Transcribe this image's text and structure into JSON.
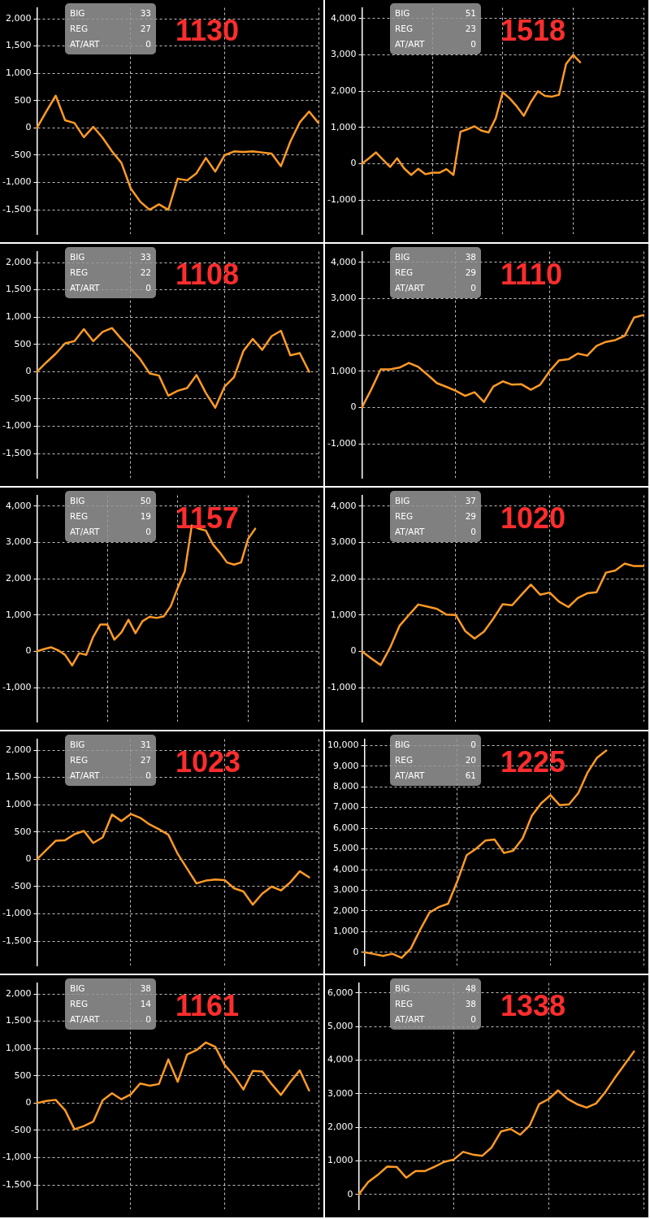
{
  "chart_data": [
    {
      "type": "line",
      "title": "1130",
      "annotations": [
        "BIG",
        "33",
        "REG",
        "27",
        "AT/ART",
        "0"
      ],
      "categories": [
        null,
        null,
        null,
        null,
        null,
        null,
        null,
        null,
        null,
        null,
        null,
        null,
        null,
        null,
        null,
        null,
        null,
        null,
        null,
        null,
        null,
        null,
        null,
        null,
        null,
        null,
        null,
        null,
        null,
        null,
        null
      ],
      "values": [
        0,
        300,
        590,
        140,
        90,
        -170,
        20,
        -180,
        -430,
        -640,
        -1110,
        -1350,
        -1500,
        -1400,
        -1500,
        -930,
        -960,
        -830,
        -550,
        -800,
        -500,
        -430,
        -440,
        -430,
        -450,
        -470,
        -700,
        -250,
        100,
        300,
        90
      ],
      "color": "#ff9a26",
      "ylim": [
        -1950,
        2200
      ],
      "yticks": [
        {
          "value": -1500,
          "label": "-1,500"
        },
        {
          "value": -1000,
          "label": "-1,000"
        },
        -500,
        0,
        500,
        {
          "value": 1000,
          "label": "1,000"
        },
        {
          "value": 1500,
          "label": "1,500"
        },
        {
          "value": 2000,
          "label": "2,000"
        }
      ],
      "grid": true,
      "tick_labels": "y",
      "marker": "none"
    },
    {
      "type": "line",
      "title": "1518",
      "annotations": [
        "BIG",
        "51",
        "REG",
        "23",
        "AT/ART",
        "0"
      ],
      "categories": [
        null,
        null,
        null,
        null,
        null,
        null,
        null,
        null,
        null,
        null,
        null,
        null,
        null,
        null,
        null,
        null,
        null,
        null,
        null,
        null,
        null,
        null,
        null,
        null,
        null,
        null,
        null,
        null,
        null,
        null,
        null,
        null,
        null,
        null,
        null,
        null,
        null,
        null,
        null,
        null,
        null
      ],
      "values": [
        0,
        150,
        310,
        110,
        -90,
        150,
        -130,
        -310,
        -140,
        -290,
        -250,
        -250,
        -150,
        -310,
        880,
        950,
        1030,
        910,
        860,
        1250,
        1970,
        1800,
        1580,
        1320,
        1700,
        2000,
        1870,
        1850,
        1900,
        2750,
        3000,
        2800,
        null,
        null,
        null,
        null,
        null,
        null,
        null,
        null,
        null
      ],
      "color": "#ff9a26",
      "ylim": [
        -1950,
        4300
      ],
      "yticks": [
        {
          "value": -1000,
          "label": "-1,000"
        },
        0,
        {
          "value": 1000,
          "label": "1,000"
        },
        {
          "value": 2000,
          "label": "2,000"
        },
        {
          "value": 3000,
          "label": "3,000"
        },
        {
          "value": 4000,
          "label": "4,000"
        }
      ],
      "grid": true,
      "tick_labels": "y",
      "marker": "none"
    },
    {
      "type": "line",
      "title": "1108",
      "annotations": [
        "BIG",
        "33",
        "REG",
        "22",
        "AT/ART",
        "0"
      ],
      "categories": [
        null,
        null,
        null,
        null,
        null,
        null,
        null,
        null,
        null,
        null,
        null,
        null,
        null,
        null,
        null,
        null,
        null,
        null,
        null,
        null,
        null,
        null,
        null,
        null,
        null,
        null,
        null,
        null,
        null,
        null,
        null
      ],
      "values": [
        0,
        170,
        330,
        520,
        560,
        780,
        560,
        730,
        800,
        600,
        420,
        230,
        -30,
        -70,
        -440,
        -350,
        -300,
        -60,
        -390,
        -660,
        -270,
        -100,
        380,
        600,
        400,
        650,
        750,
        300,
        340,
        0,
        null
      ],
      "color": "#ff9a26",
      "ylim": [
        -1950,
        2200
      ],
      "yticks": [
        {
          "value": -1500,
          "label": "-1,500"
        },
        {
          "value": -1000,
          "label": "-1,000"
        },
        -500,
        0,
        500,
        {
          "value": 1000,
          "label": "1,000"
        },
        {
          "value": 1500,
          "label": "1,500"
        },
        {
          "value": 2000,
          "label": "2,000"
        }
      ],
      "grid": true,
      "tick_labels": "y",
      "marker": "none"
    },
    {
      "type": "line",
      "title": "1110",
      "annotations": [
        "BIG",
        "38",
        "REG",
        "29",
        "AT/ART",
        "0"
      ],
      "categories": [
        null,
        null,
        null,
        null,
        null,
        null,
        null,
        null,
        null,
        null,
        null,
        null,
        null,
        null,
        null,
        null,
        null,
        null,
        null,
        null,
        null,
        null,
        null,
        null,
        null,
        null,
        null,
        null,
        null,
        null,
        null
      ],
      "values": [
        0,
        500,
        1050,
        1050,
        1100,
        1230,
        1120,
        900,
        670,
        570,
        460,
        320,
        420,
        150,
        580,
        720,
        630,
        640,
        490,
        630,
        1000,
        1300,
        1330,
        1490,
        1430,
        1700,
        1810,
        1860,
        1980,
        2480,
        2550
      ],
      "color": "#ff9a26",
      "ylim": [
        -1950,
        4300
      ],
      "yticks": [
        {
          "value": -1000,
          "label": "-1,000"
        },
        0,
        {
          "value": 1000,
          "label": "1,000"
        },
        {
          "value": 2000,
          "label": "2,000"
        },
        {
          "value": 3000,
          "label": "3,000"
        },
        {
          "value": 4000,
          "label": "4,000"
        }
      ],
      "grid": true,
      "tick_labels": "y",
      "marker": "none"
    },
    {
      "type": "line",
      "title": "1157",
      "annotations": [
        "BIG",
        "50",
        "REG",
        "19",
        "AT/ART",
        "0"
      ],
      "categories": [
        null,
        null,
        null,
        null,
        null,
        null,
        null,
        null,
        null,
        null,
        null,
        null,
        null,
        null,
        null,
        null,
        null,
        null,
        null,
        null,
        null,
        null,
        null,
        null,
        null,
        null,
        null,
        null,
        null,
        null,
        null,
        null,
        null,
        null,
        null,
        null,
        null,
        null,
        null,
        null,
        null
      ],
      "values": [
        0,
        60,
        110,
        30,
        -100,
        -390,
        -50,
        -100,
        400,
        740,
        740,
        320,
        520,
        870,
        500,
        830,
        950,
        920,
        960,
        1240,
        1750,
        2200,
        3470,
        3380,
        3330,
        2950,
        2720,
        2450,
        2390,
        2450,
        3100,
        3380,
        null,
        null,
        null,
        null,
        null,
        null,
        null,
        null,
        null
      ],
      "color": "#ff9a26",
      "ylim": [
        -1950,
        4300
      ],
      "yticks": [
        {
          "value": -1000,
          "label": "-1,000"
        },
        0,
        {
          "value": 1000,
          "label": "1,000"
        },
        {
          "value": 2000,
          "label": "2,000"
        },
        {
          "value": 3000,
          "label": "3,000"
        },
        {
          "value": 4000,
          "label": "4,000"
        }
      ],
      "grid": true,
      "tick_labels": "y",
      "marker": "none"
    },
    {
      "type": "line",
      "title": "1020",
      "annotations": [
        "BIG",
        "37",
        "REG",
        "29",
        "AT/ART",
        "0"
      ],
      "categories": [
        null,
        null,
        null,
        null,
        null,
        null,
        null,
        null,
        null,
        null,
        null,
        null,
        null,
        null,
        null,
        null,
        null,
        null,
        null,
        null,
        null,
        null,
        null,
        null,
        null,
        null,
        null,
        null,
        null,
        null,
        null
      ],
      "values": [
        0,
        -200,
        -380,
        100,
        700,
        1000,
        1290,
        1230,
        1170,
        1010,
        1000,
        560,
        350,
        540,
        900,
        1300,
        1270,
        1560,
        1840,
        1560,
        1620,
        1370,
        1220,
        1470,
        1600,
        1630,
        2170,
        2230,
        2420,
        2350,
        2350
      ],
      "color": "#ff9a26",
      "ylim": [
        -1950,
        4300
      ],
      "yticks": [
        {
          "value": -1000,
          "label": "-1,000"
        },
        0,
        {
          "value": 1000,
          "label": "1,000"
        },
        {
          "value": 2000,
          "label": "2,000"
        },
        {
          "value": 3000,
          "label": "3,000"
        },
        {
          "value": 4000,
          "label": "4,000"
        }
      ],
      "grid": true,
      "tick_labels": "y",
      "marker": "none"
    },
    {
      "type": "line",
      "title": "1023",
      "annotations": [
        "BIG",
        "31",
        "REG",
        "27",
        "AT/ART",
        "0"
      ],
      "categories": [
        null,
        null,
        null,
        null,
        null,
        null,
        null,
        null,
        null,
        null,
        null,
        null,
        null,
        null,
        null,
        null,
        null,
        null,
        null,
        null,
        null,
        null,
        null,
        null,
        null,
        null,
        null,
        null,
        null,
        null,
        null
      ],
      "values": [
        0,
        170,
        340,
        350,
        460,
        520,
        300,
        400,
        820,
        700,
        830,
        760,
        640,
        550,
        450,
        100,
        -170,
        -440,
        -390,
        -370,
        -380,
        -530,
        -590,
        -830,
        -630,
        -500,
        -570,
        -420,
        -220,
        -330,
        null
      ],
      "color": "#ff9a26",
      "ylim": [
        -1950,
        2200
      ],
      "yticks": [
        {
          "value": -1500,
          "label": "-1,500"
        },
        {
          "value": -1000,
          "label": "-1,000"
        },
        -500,
        0,
        500,
        {
          "value": 1000,
          "label": "1,000"
        },
        {
          "value": 1500,
          "label": "1,500"
        },
        {
          "value": 2000,
          "label": "2,000"
        }
      ],
      "grid": true,
      "tick_labels": "y",
      "marker": "none"
    },
    {
      "type": "line",
      "title": "1225",
      "annotations": [
        "BIG",
        "0",
        "REG",
        "20",
        "AT/ART",
        "61"
      ],
      "categories": [
        null,
        null,
        null,
        null,
        null,
        null,
        null,
        null,
        null,
        null,
        null,
        null,
        null,
        null,
        null,
        null,
        null,
        null,
        null,
        null,
        null,
        null,
        null,
        null,
        null,
        null,
        null,
        null,
        null,
        null,
        null
      ],
      "values": [
        0,
        -80,
        -170,
        -70,
        -270,
        190,
        1100,
        1920,
        2190,
        2350,
        3450,
        4700,
        5000,
        5400,
        5450,
        4800,
        4910,
        5500,
        6600,
        7200,
        7600,
        7110,
        7150,
        7700,
        8700,
        9400,
        9750,
        null,
        null,
        null,
        null
      ],
      "color": "#ff9a26",
      "ylim": [
        -650,
        10300
      ],
      "yticks": [
        0,
        {
          "value": 1000,
          "label": "1,000"
        },
        {
          "value": 2000,
          "label": "2,000"
        },
        {
          "value": 3000,
          "label": "3,000"
        },
        {
          "value": 4000,
          "label": "4,000"
        },
        {
          "value": 5000,
          "label": "5,000"
        },
        {
          "value": 6000,
          "label": "6,000"
        },
        {
          "value": 7000,
          "label": "7,000"
        },
        {
          "value": 8000,
          "label": "8,000"
        },
        {
          "value": 9000,
          "label": "9,000"
        },
        {
          "value": 10000,
          "label": "10,000"
        }
      ],
      "grid": true,
      "tick_labels": "y",
      "marker": "none"
    },
    {
      "type": "line",
      "title": "1161",
      "annotations": [
        "BIG",
        "38",
        "REG",
        "14",
        "AT/ART",
        "0"
      ],
      "categories": [
        null,
        null,
        null,
        null,
        null,
        null,
        null,
        null,
        null,
        null,
        null,
        null,
        null,
        null,
        null,
        null,
        null,
        null,
        null,
        null,
        null,
        null,
        null,
        null,
        null,
        null,
        null,
        null,
        null,
        null,
        null
      ],
      "values": [
        0,
        40,
        60,
        -130,
        -480,
        -420,
        -340,
        50,
        180,
        70,
        160,
        360,
        320,
        350,
        800,
        390,
        890,
        970,
        1110,
        1030,
        700,
        500,
        250,
        590,
        580,
        350,
        150,
        390,
        600,
        230,
        null
      ],
      "color": "#ff9a26",
      "ylim": [
        -1950,
        2200
      ],
      "yticks": [
        {
          "value": -1500,
          "label": "-1,500"
        },
        {
          "value": -1000,
          "label": "-1,000"
        },
        -500,
        0,
        500,
        {
          "value": 1000,
          "label": "1,000"
        },
        {
          "value": 1500,
          "label": "1,500"
        },
        {
          "value": 2000,
          "label": "2,000"
        }
      ],
      "grid": true,
      "tick_labels": "y",
      "marker": "none"
    },
    {
      "type": "line",
      "title": "1338",
      "annotations": [
        "BIG",
        "48",
        "REG",
        "38",
        "AT/ART",
        "0"
      ],
      "categories": [
        null,
        null,
        null,
        null,
        null,
        null,
        null,
        null,
        null,
        null,
        null,
        null,
        null,
        null,
        null,
        null,
        null,
        null,
        null,
        null,
        null,
        null,
        null,
        null,
        null,
        null,
        null,
        null,
        null,
        null,
        null
      ],
      "values": [
        0,
        370,
        580,
        830,
        820,
        500,
        700,
        700,
        830,
        970,
        1040,
        1270,
        1190,
        1150,
        1400,
        1880,
        1950,
        1780,
        2050,
        2690,
        2840,
        3100,
        2850,
        2690,
        2590,
        2710,
        3060,
        3480,
        3870,
        4260,
        null
      ],
      "color": "#ff9a26",
      "ylim": [
        -450,
        6300
      ],
      "yticks": [
        0,
        {
          "value": 1000,
          "label": "1,000"
        },
        {
          "value": 2000,
          "label": "2,000"
        },
        {
          "value": 3000,
          "label": "3,000"
        },
        {
          "value": 4000,
          "label": "4,000"
        },
        {
          "value": 5000,
          "label": "5,000"
        },
        {
          "value": 6000,
          "label": "6,000"
        }
      ],
      "grid": true,
      "tick_labels": "y",
      "marker": "none"
    }
  ]
}
